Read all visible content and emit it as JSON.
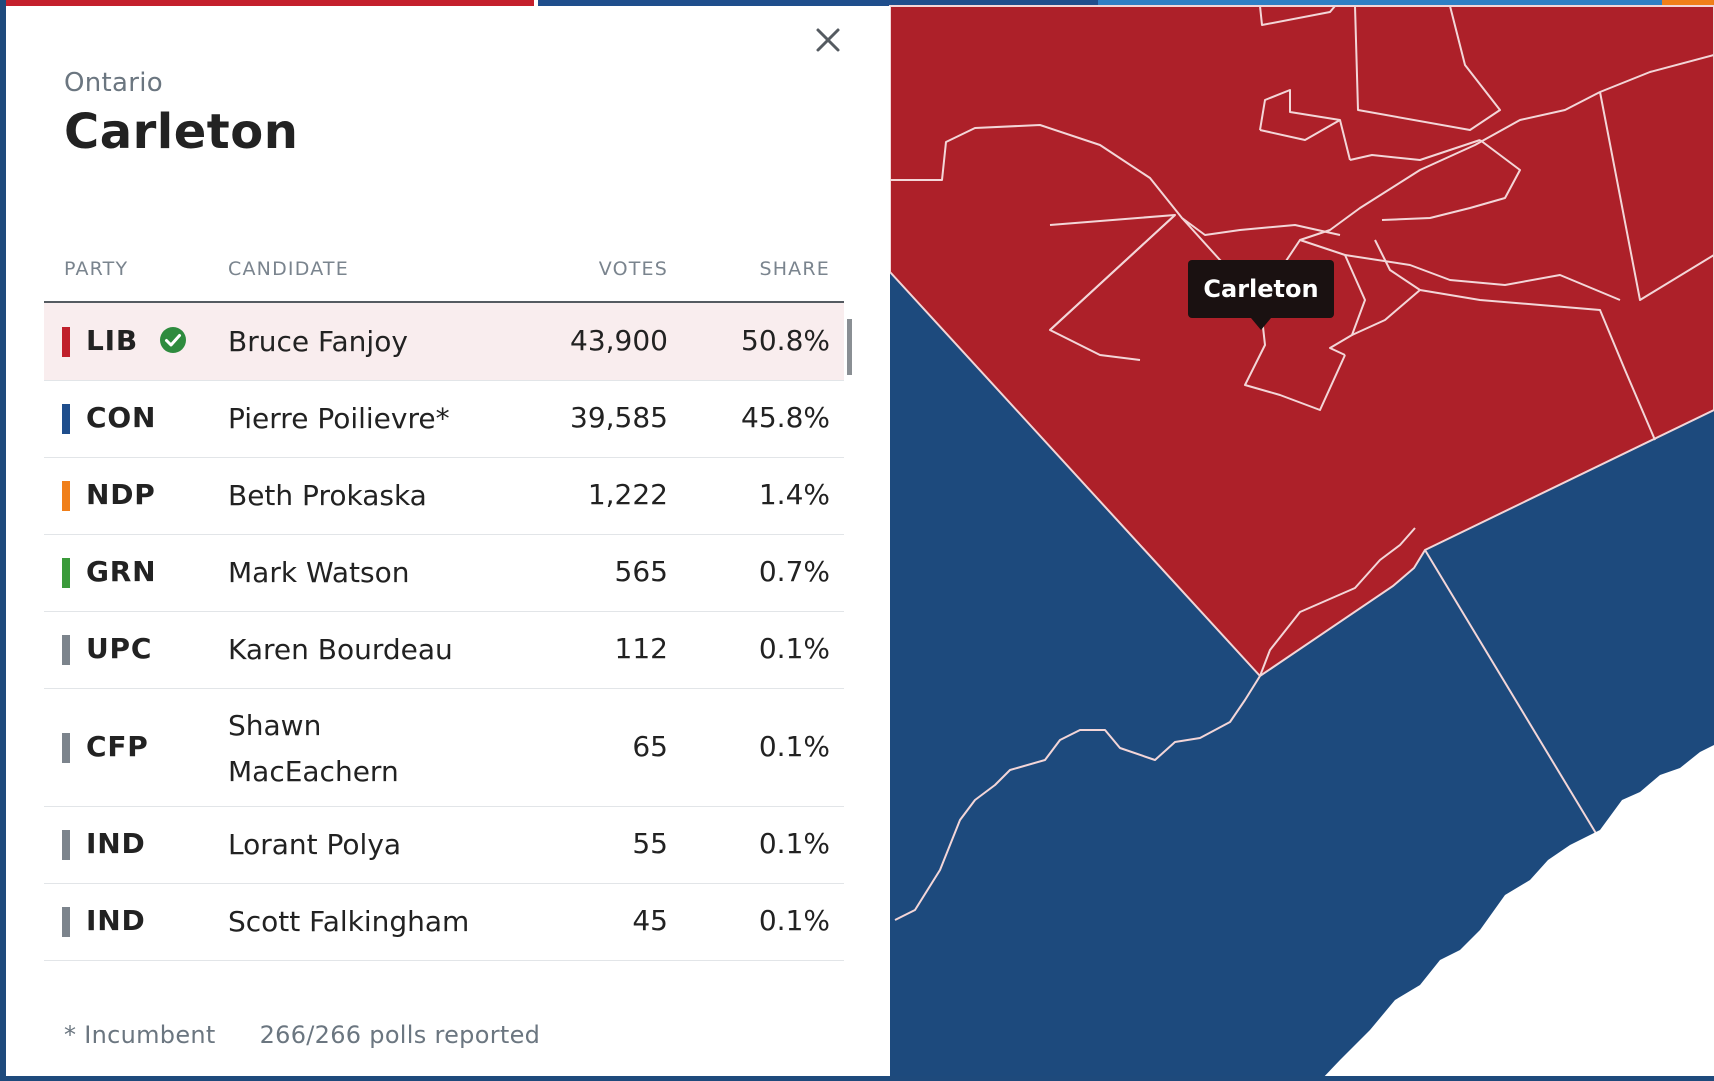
{
  "panel": {
    "province": "Ontario",
    "riding": "Carleton",
    "close_icon": "close-icon",
    "headers": {
      "party": "PARTY",
      "candidate": "CANDIDATE",
      "votes": "VOTES",
      "share": "SHARE"
    },
    "rows": [
      {
        "party": "LIB",
        "color": "#c0202b",
        "candidate": "Bruce Fanjoy",
        "votes": "43,900",
        "share": "50.8%",
        "winner": true
      },
      {
        "party": "CON",
        "color": "#1f4e8c",
        "candidate": "Pierre Poilievre*",
        "votes": "39,585",
        "share": "45.8%"
      },
      {
        "party": "NDP",
        "color": "#f07f1a",
        "candidate": "Beth Prokaska",
        "votes": "1,222",
        "share": "1.4%"
      },
      {
        "party": "GRN",
        "color": "#3a9a3a",
        "candidate": "Mark Watson",
        "votes": "565",
        "share": "0.7%"
      },
      {
        "party": "UPC",
        "color": "#7c848c",
        "candidate": "Karen Bourdeau",
        "votes": "112",
        "share": "0.1%"
      },
      {
        "party": "CFP",
        "color": "#7c848c",
        "candidate": "Shawn MacEachern",
        "votes": "65",
        "share": "0.1%"
      },
      {
        "party": "IND",
        "color": "#7c848c",
        "candidate": "Lorant Polya",
        "votes": "55",
        "share": "0.1%"
      },
      {
        "party": "IND",
        "color": "#7c848c",
        "candidate": "Scott Falkingham",
        "votes": "45",
        "share": "0.1%"
      }
    ],
    "footer": {
      "incumbent_note": "* Incumbent",
      "polls": "266/266 polls reported"
    }
  },
  "map": {
    "tooltip": "Carleton",
    "colors": {
      "liberal": "#ad2029",
      "conservative": "#1d4a7d",
      "border": "#f3d6d8",
      "water": "#ffffff"
    }
  },
  "theme": {
    "winner_check": "#2e8b3e",
    "winner_row_bg": "#f9edee"
  }
}
